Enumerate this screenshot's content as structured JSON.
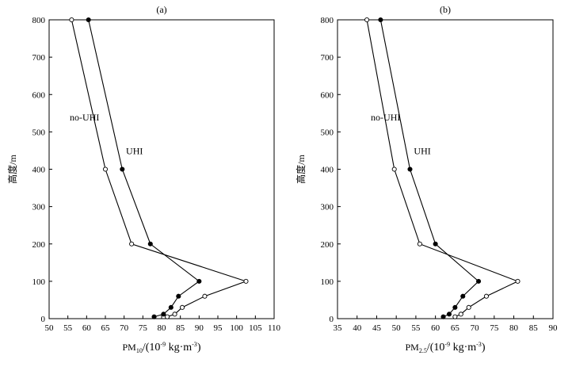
{
  "chart_data": [
    {
      "type": "line",
      "title": "(a)",
      "xlabel_main": "PM",
      "xlabel_sub": "10",
      "xlabel_unit_prefix": "/(10",
      "xlabel_unit_exp": "-9",
      "xlabel_unit_mid": " kg·m",
      "xlabel_unit_exp2": "-3",
      "xlabel_unit_suffix": ")",
      "ylabel": "高度/m",
      "xlim": [
        50,
        110
      ],
      "ylim": [
        0,
        800
      ],
      "xticks": [
        50,
        55,
        60,
        65,
        70,
        75,
        80,
        85,
        90,
        95,
        100,
        105,
        110
      ],
      "yticks": [
        0,
        100,
        200,
        300,
        400,
        500,
        600,
        700,
        800
      ],
      "series": [
        {
          "name": "UHI",
          "marker": "filled",
          "points": [
            [
              60.5,
              800
            ],
            [
              69.5,
              400
            ],
            [
              77,
              200
            ],
            [
              90,
              100
            ],
            [
              84.5,
              60
            ],
            [
              82.5,
              30
            ],
            [
              80.5,
              12
            ],
            [
              78,
              5
            ]
          ]
        },
        {
          "name": "no-UHI",
          "marker": "open",
          "points": [
            [
              56,
              800
            ],
            [
              65,
              400
            ],
            [
              72,
              200
            ],
            [
              102.5,
              100
            ],
            [
              91.5,
              60
            ],
            [
              85.5,
              30
            ],
            [
              83.5,
              12
            ],
            [
              81.5,
              5
            ]
          ]
        }
      ],
      "annotations": [
        {
          "text": "no-UHI",
          "x": 55.5,
          "y": 530
        },
        {
          "text": "UHI",
          "x": 70.5,
          "y": 440
        }
      ]
    },
    {
      "type": "line",
      "title": "(b)",
      "xlabel_main": "PM",
      "xlabel_sub": "2.5",
      "xlabel_unit_prefix": "/(10",
      "xlabel_unit_exp": "-9",
      "xlabel_unit_mid": " kg·m",
      "xlabel_unit_exp2": "-3",
      "xlabel_unit_suffix": ")",
      "ylabel": "高度/m",
      "xlim": [
        35,
        90
      ],
      "ylim": [
        0,
        800
      ],
      "xticks": [
        35,
        40,
        45,
        50,
        55,
        60,
        65,
        70,
        75,
        80,
        85,
        90
      ],
      "yticks": [
        0,
        100,
        200,
        300,
        400,
        500,
        600,
        700,
        800
      ],
      "series": [
        {
          "name": "UHI",
          "marker": "filled",
          "points": [
            [
              46,
              800
            ],
            [
              53.5,
              400
            ],
            [
              60,
              200
            ],
            [
              71,
              100
            ],
            [
              67,
              60
            ],
            [
              65,
              30
            ],
            [
              63.5,
              12
            ],
            [
              62,
              5
            ]
          ]
        },
        {
          "name": "no-UHI",
          "marker": "open",
          "points": [
            [
              42.5,
              800
            ],
            [
              49.5,
              400
            ],
            [
              56,
              200
            ],
            [
              81,
              100
            ],
            [
              73,
              60
            ],
            [
              68.5,
              30
            ],
            [
              66.5,
              12
            ],
            [
              65,
              5
            ]
          ]
        }
      ],
      "annotations": [
        {
          "text": "no-UHI",
          "x": 43.5,
          "y": 530
        },
        {
          "text": "UHI",
          "x": 54.5,
          "y": 440
        }
      ]
    }
  ]
}
